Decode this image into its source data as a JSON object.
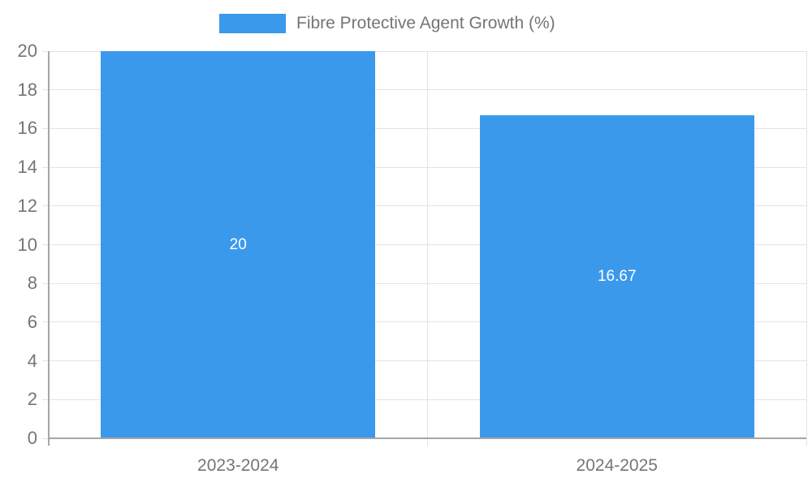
{
  "chart_data": {
    "type": "bar",
    "title": "Fibre Protective Agent Growth (%)",
    "categories": [
      "2023-2024",
      "2024-2025"
    ],
    "values": [
      20,
      16.67
    ],
    "value_labels": [
      "20",
      "16.67"
    ],
    "xlabel": "",
    "ylabel": "",
    "ylim": [
      0,
      20
    ],
    "ytick_step": 2,
    "yticks": [
      0,
      2,
      4,
      6,
      8,
      10,
      12,
      14,
      16,
      18,
      20
    ],
    "grid": true,
    "legend_position": "top",
    "colors": {
      "bar": "#3b99ec",
      "value_label": "#ffffff",
      "axis_line": "#a6a6a6",
      "gridline": "#e3e3e3",
      "tick_label": "#757575",
      "legend_text": "#757575"
    }
  }
}
